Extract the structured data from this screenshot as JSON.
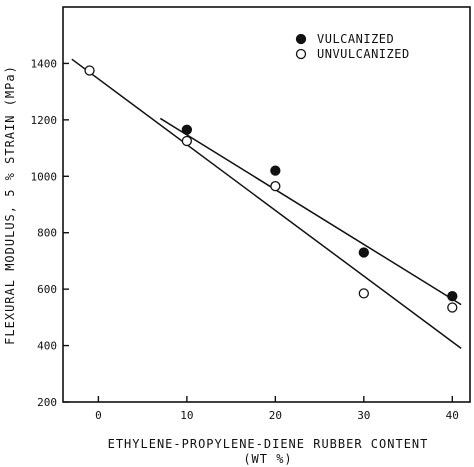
{
  "chart_data": {
    "type": "scatter",
    "title": "",
    "xlabel": "ETHYLENE-PROPYLENE-DIENE RUBBER CONTENT",
    "xlabel_unit": "(WT %)",
    "ylabel": "FLEXURAL MODULUS, 5 % STRAIN (MPa)",
    "xlim": [
      -4,
      42
    ],
    "ylim": [
      200,
      1600
    ],
    "x_ticks": [
      0,
      10,
      20,
      30,
      40
    ],
    "y_ticks": [
      200,
      400,
      600,
      800,
      1000,
      1200,
      1400
    ],
    "x_tick_labels": [
      "0",
      "10",
      "20",
      "30",
      "40"
    ],
    "y_tick_labels": [
      "200",
      "400",
      "600",
      "800",
      "1000",
      "1200",
      "1400"
    ],
    "grid": false,
    "legend_position": "top-right",
    "series": [
      {
        "name": "VULCANIZED",
        "marker": "filled-circle",
        "color": "#111111",
        "x": [
          10,
          20,
          30,
          40
        ],
        "y": [
          1165,
          1020,
          730,
          575
        ],
        "trend_line": {
          "x": [
            7,
            41
          ],
          "y": [
            1205,
            545
          ]
        }
      },
      {
        "name": "UNVULCANIZED",
        "marker": "open-circle",
        "color": "#111111",
        "x": [
          -1,
          10,
          20,
          30,
          40
        ],
        "y": [
          1375,
          1125,
          965,
          585,
          535
        ],
        "trend_line": {
          "x": [
            -3,
            41
          ],
          "y": [
            1415,
            390
          ]
        }
      }
    ]
  }
}
